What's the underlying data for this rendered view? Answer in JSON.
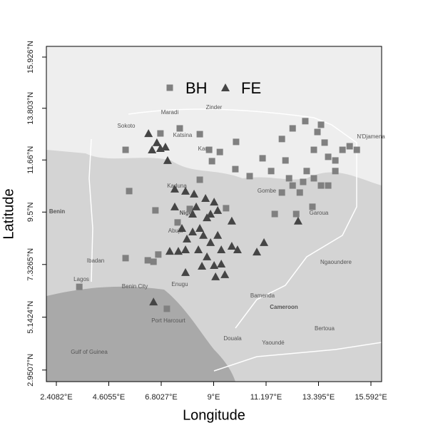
{
  "chart_data": {
    "type": "scatter",
    "x_label": "Longitude",
    "y_label": "Latitude",
    "xlim": [
      1.99,
      16.04
    ],
    "ylim": [
      2.47,
      16.37
    ],
    "xticks": [
      {
        "value": 2.4082,
        "label": "2.4082°E"
      },
      {
        "value": 4.6055,
        "label": "4.6055°E"
      },
      {
        "value": 6.8027,
        "label": "6.8027°E"
      },
      {
        "value": 9,
        "label": "9°E"
      },
      {
        "value": 11.197,
        "label": "11.197°E"
      },
      {
        "value": 13.395,
        "label": "13.395°E"
      },
      {
        "value": 15.592,
        "label": "15.592°E"
      }
    ],
    "yticks": [
      {
        "value": 2.9507,
        "label": "2.9507°N"
      },
      {
        "value": 5.1424,
        "label": "5.1424°N"
      },
      {
        "value": 7.3265,
        "label": "7.3265°N"
      },
      {
        "value": 9.5,
        "label": "9.5°N"
      },
      {
        "value": 11.66,
        "label": "11.66°N"
      },
      {
        "value": 13.803,
        "label": "13.803°N"
      },
      {
        "value": 15.926,
        "label": "15.926°N"
      }
    ],
    "map_labels": [
      "Benin",
      "Ibadan",
      "Lagos",
      "Kano",
      "Niger",
      "Abuja",
      "Cameroon",
      "Douala",
      "Yaoundé",
      "N'Djamena",
      "Maradi",
      "Zinder",
      "Sokoto",
      "Katsina",
      "Kaduna",
      "Gombe",
      "Garoua",
      "Ngaoundere",
      "Bamenda",
      "Port Harcourt",
      "Benin City",
      "Enugu",
      "Bertoua",
      "Gulf of Guinea"
    ],
    "series": [
      {
        "name": "BH",
        "marker": "square",
        "color": "#808080",
        "x": [
          5.31,
          5.46,
          6.56,
          6.77,
          7.58,
          8.42,
          8.81,
          8.93,
          9.94,
          9.91,
          10.51,
          11.05,
          11.41,
          11.86,
          12.01,
          12.31,
          12.46,
          12.61,
          12.84,
          13.14,
          13.35,
          13.5,
          13.65,
          13.8,
          14.1,
          14.4,
          14.7,
          15.0,
          12.75,
          12.9,
          13.2,
          13.5,
          12.16,
          11.86,
          11.56,
          5.31,
          6.24,
          6.48,
          6.68,
          7.04,
          3.37,
          7.49,
          9.52,
          8.0,
          8.42,
          9.26,
          12.31,
          13.2,
          13.8,
          14.1
        ],
        "y": [
          12.08,
          10.37,
          9.57,
          12.76,
          12.97,
          12.73,
          12.08,
          11.61,
          12.41,
          11.28,
          10.99,
          11.73,
          11.2,
          12.53,
          11.64,
          10.6,
          9.42,
          10.31,
          13.27,
          9.72,
          12.82,
          13.12,
          12.38,
          11.79,
          11.2,
          12.08,
          12.23,
          12.08,
          10.75,
          11.2,
          10.9,
          10.6,
          10.9,
          10.31,
          9.42,
          7.59,
          7.5,
          7.44,
          7.74,
          5.49,
          6.4,
          9.07,
          9.66,
          9.63,
          10.84,
          11.99,
          12.97,
          12.08,
          10.6,
          11.64
        ]
      },
      {
        "name": "FE",
        "marker": "triangle",
        "color": "#454545",
        "x": [
          6.27,
          6.42,
          6.62,
          6.77,
          6.98,
          7.07,
          7.37,
          7.82,
          8.18,
          8.27,
          8.66,
          9.02,
          8.87,
          9.17,
          8.72,
          8.42,
          8.12,
          7.88,
          8.57,
          8.87,
          9.17,
          7.82,
          7.52,
          7.16,
          8.36,
          8.72,
          9.02,
          9.32,
          9.47,
          9.08,
          9.76,
          9.76,
          10.0,
          10.81,
          11.11,
          7.82,
          8.51,
          6.48,
          12.54,
          8.12,
          7.67,
          9.32,
          7.37
        ],
        "y": [
          12.76,
          12.08,
          12.38,
          12.14,
          12.2,
          11.64,
          10.46,
          10.37,
          10.25,
          9.72,
          10.07,
          9.92,
          9.42,
          9.57,
          9.27,
          8.83,
          8.68,
          8.39,
          8.54,
          8.24,
          8.54,
          7.94,
          7.88,
          7.88,
          7.94,
          7.65,
          7.29,
          7.35,
          6.91,
          6.82,
          9.13,
          8.09,
          7.94,
          7.85,
          8.24,
          7.0,
          7.26,
          5.78,
          9.13,
          9.42,
          8.83,
          7.94,
          9.72
        ]
      }
    ]
  }
}
